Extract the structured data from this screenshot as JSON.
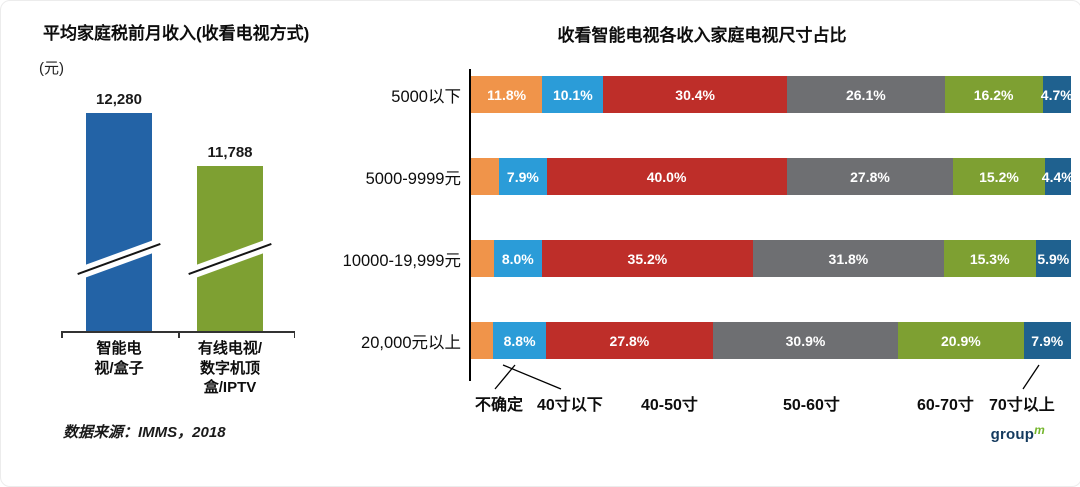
{
  "page": {
    "source": "数据来源：IMMS，2018",
    "logo": {
      "group": "group",
      "m": "m"
    }
  },
  "chart_data": [
    {
      "type": "bar",
      "title": "平均家庭税前月收入(收看电视方式)",
      "ylabel": "(元)",
      "categories": [
        "智能电\n视/盒子",
        "有线电视/\n数字机顶\n盒/IPTV"
      ],
      "values": [
        12280,
        11788
      ],
      "value_labels": [
        "12,280",
        "11,788"
      ],
      "colors": [
        "#2363A6",
        "#7EA032"
      ],
      "axis_break": true,
      "grid": false
    },
    {
      "type": "bar",
      "subtype": "horizontal-stacked",
      "title": "收看智能电视各收入家庭电视尺寸占比",
      "categories": [
        "5000以下",
        "5000-9999元",
        "10000-19,999元",
        "20,000元以上"
      ],
      "xlim": [
        0,
        100
      ],
      "legend_position": "bottom",
      "legend": [
        "不确定",
        "40寸以下",
        "40-50寸",
        "50-60寸",
        "60-70寸",
        "70寸以上"
      ],
      "series": [
        {
          "name": "不确定",
          "color": "#F0944A",
          "values": [
            11.8,
            4.7,
            3.8,
            3.7
          ],
          "labels": [
            "11.8%",
            "",
            "",
            ""
          ]
        },
        {
          "name": "40寸以下",
          "color": "#2B9CD8",
          "values": [
            10.1,
            7.9,
            8.0,
            8.8
          ],
          "labels": [
            "10.1%",
            "7.9%",
            "8.0%",
            "8.8%"
          ]
        },
        {
          "name": "40-50寸",
          "color": "#BE2E29",
          "values": [
            30.4,
            40.0,
            35.2,
            27.8
          ],
          "labels": [
            "30.4%",
            "40.0%",
            "35.2%",
            "27.8%"
          ]
        },
        {
          "name": "50-60寸",
          "color": "#6E6F72",
          "values": [
            26.1,
            27.8,
            31.8,
            30.9
          ],
          "labels": [
            "26.1%",
            "27.8%",
            "31.8%",
            "30.9%"
          ]
        },
        {
          "name": "60-70寸",
          "color": "#7EA032",
          "values": [
            16.2,
            15.2,
            15.3,
            20.9
          ],
          "labels": [
            "16.2%",
            "15.2%",
            "15.3%",
            "20.9%"
          ]
        },
        {
          "name": "70寸以上",
          "color": "#1F618F",
          "values": [
            4.7,
            4.4,
            5.9,
            7.9
          ],
          "labels": [
            "4.7%",
            "4.4%",
            "5.9%",
            "7.9%"
          ]
        }
      ]
    }
  ]
}
